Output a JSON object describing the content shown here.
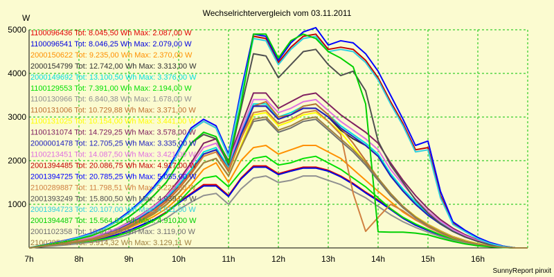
{
  "chart_data": {
    "type": "line",
    "title": "Wechselrichtervergleich vom 03.11.2011",
    "ylabel": "W",
    "credit": "SunnyReport pinxit",
    "grid": true,
    "legend_placement": "top-left",
    "x_range": [
      7.0,
      17.0
    ],
    "y_range": [
      0,
      5000
    ],
    "xticks": [
      {
        "value": 7,
        "label": "7h"
      },
      {
        "value": 8,
        "label": "8h"
      },
      {
        "value": 9,
        "label": "9h"
      },
      {
        "value": 10,
        "label": "10h"
      },
      {
        "value": 11,
        "label": "11h"
      },
      {
        "value": 12,
        "label": "12h"
      },
      {
        "value": 13,
        "label": "13h"
      },
      {
        "value": 14,
        "label": "14h"
      },
      {
        "value": 15,
        "label": "15h"
      },
      {
        "value": 16,
        "label": "16h"
      }
    ],
    "yticks": [
      {
        "value": 1000,
        "label": "1000"
      },
      {
        "value": 2000,
        "label": "2000"
      },
      {
        "value": 3000,
        "label": "3000"
      },
      {
        "value": 4000,
        "label": "4000"
      },
      {
        "value": 5000,
        "label": "5000"
      }
    ],
    "x": [
      7.0,
      7.25,
      7.5,
      7.75,
      8.0,
      8.25,
      8.5,
      8.75,
      9.0,
      9.25,
      9.5,
      9.75,
      10.0,
      10.25,
      10.5,
      10.75,
      11.0,
      11.25,
      11.5,
      11.75,
      12.0,
      12.25,
      12.5,
      12.75,
      13.0,
      13.25,
      13.5,
      13.75,
      14.0,
      14.25,
      14.5,
      14.75,
      15.0,
      15.25,
      15.5,
      15.75,
      16.0,
      16.25,
      16.5,
      16.75,
      17.0
    ],
    "series": [
      {
        "name": "1100096436 Tot: 8.045,50 Wh Max: 2.087,00 W",
        "color": "#e00000",
        "values": [
          0,
          30,
          60,
          90,
          120,
          160,
          220,
          300,
          400,
          520,
          650,
          820,
          1050,
          1250,
          1450,
          1450,
          1200,
          1600,
          1880,
          1880,
          1700,
          1780,
          1850,
          1850,
          1780,
          1650,
          1480,
          1280,
          1100,
          900,
          700,
          540,
          420,
          300,
          200,
          130,
          80,
          40,
          20,
          0,
          0
        ]
      },
      {
        "name": "1100096541 Tot: 8.046,25 Wh Max: 2.079,00 W",
        "color": "#0000e0",
        "values": [
          0,
          30,
          60,
          90,
          120,
          160,
          220,
          300,
          400,
          520,
          650,
          800,
          1030,
          1230,
          1420,
          1420,
          1180,
          1580,
          1850,
          1850,
          1680,
          1760,
          1830,
          1830,
          1760,
          1630,
          1460,
          1260,
          1080,
          880,
          680,
          520,
          400,
          290,
          190,
          120,
          70,
          40,
          15,
          0,
          0
        ]
      },
      {
        "name": "2000150622 Tot: 9.235,00 Wh Max: 2.370,00 W",
        "color": "#ff9000",
        "values": [
          0,
          35,
          70,
          100,
          140,
          180,
          250,
          340,
          450,
          580,
          720,
          900,
          1150,
          1450,
          1800,
          1950,
          1500,
          2000,
          2300,
          2350,
          2150,
          2250,
          2350,
          2350,
          2200,
          2050,
          1800,
          1550,
          1300,
          1060,
          820,
          640,
          500,
          360,
          240,
          150,
          90,
          40,
          20,
          0,
          0
        ]
      },
      {
        "name": "2000154799 Tot: 12.742,00 Wh Max: 3.313,00 W",
        "color": "#303030",
        "values": [
          0,
          40,
          80,
          120,
          170,
          220,
          300,
          400,
          540,
          700,
          880,
          1100,
          1400,
          1750,
          2150,
          2250,
          1800,
          2600,
          3250,
          3250,
          2950,
          3050,
          3200,
          3200,
          3000,
          2700,
          2500,
          2350,
          2100,
          1650,
          1300,
          1000,
          750,
          550,
          380,
          250,
          150,
          80,
          30,
          0,
          0
        ]
      },
      {
        "name": "2000149692 Tot: 13.100,50 Wh Max: 3.376,00 W",
        "color": "#00e0e0",
        "values": [
          0,
          40,
          80,
          120,
          170,
          230,
          310,
          420,
          560,
          720,
          900,
          1150,
          1450,
          1800,
          2200,
          2300,
          1850,
          2650,
          3300,
          3300,
          3000,
          3100,
          3250,
          3300,
          3050,
          2800,
          2600,
          2400,
          2150,
          1700,
          1350,
          1050,
          780,
          570,
          390,
          260,
          160,
          80,
          30,
          0,
          0
        ]
      },
      {
        "name": "1100129553 Tot: 7.391,00 Wh Max: 2.194,00 W",
        "color": "#00e000",
        "values": [
          0,
          30,
          50,
          80,
          110,
          150,
          200,
          270,
          360,
          480,
          620,
          800,
          1050,
          1350,
          1600,
          1650,
          1400,
          1750,
          2050,
          2100,
          1900,
          1950,
          2050,
          2100,
          1950,
          1800,
          1600,
          1400,
          1150,
          900,
          700,
          550,
          420,
          300,
          200,
          130,
          80,
          40,
          15,
          0,
          0
        ]
      },
      {
        "name": "1100130966 Tot: 6.840,38 Wh Max: 1.678,00 W",
        "color": "#909090",
        "values": [
          0,
          25,
          45,
          70,
          100,
          130,
          170,
          230,
          310,
          420,
          540,
          680,
          880,
          1050,
          1200,
          1250,
          1000,
          1350,
          1600,
          1650,
          1500,
          1550,
          1650,
          1650,
          1550,
          1450,
          1300,
          1150,
          950,
          760,
          600,
          470,
          360,
          260,
          170,
          110,
          70,
          30,
          15,
          0,
          0
        ]
      },
      {
        "name": "1100131006 Tot: 10.729,88 Wh Max: 3.371,00 W",
        "color": "#c07030",
        "values": [
          0,
          40,
          70,
          110,
          150,
          200,
          280,
          380,
          500,
          650,
          820,
          1050,
          1350,
          1700,
          2100,
          2200,
          1750,
          2500,
          3250,
          3350,
          3000,
          3050,
          3250,
          3300,
          3050,
          2750,
          2400,
          2000,
          1600,
          1250,
          950,
          720,
          540,
          390,
          260,
          170,
          100,
          50,
          20,
          0,
          0
        ]
      },
      {
        "name": "1100131025 Tot: 10.154,00 Wh Max: 3.441,00 W",
        "color": "#ffff00",
        "values": [
          0,
          35,
          70,
          100,
          140,
          190,
          260,
          350,
          470,
          610,
          770,
          980,
          1250,
          1600,
          1950,
          2050,
          1650,
          2350,
          3050,
          3100,
          2800,
          2900,
          3050,
          3100,
          2900,
          2650,
          2300,
          1950,
          1600,
          1250,
          950,
          720,
          530,
          380,
          250,
          160,
          100,
          50,
          20,
          0,
          0
        ]
      },
      {
        "name": "1100131074 Tot: 14.729,25 Wh Max: 3.578,00 W",
        "color": "#802060",
        "values": [
          0,
          45,
          90,
          130,
          180,
          240,
          330,
          440,
          590,
          760,
          960,
          1200,
          1550,
          1950,
          2400,
          2500,
          2000,
          2800,
          3550,
          3550,
          3200,
          3350,
          3500,
          3550,
          3300,
          3050,
          2850,
          2650,
          2400,
          1950,
          1550,
          1200,
          900,
          650,
          450,
          300,
          180,
          90,
          35,
          0,
          0
        ]
      },
      {
        "name": "2000001478 Tot: 12.705,25 Wh Max: 3.335,00 W",
        "color": "#2020c0",
        "values": [
          0,
          40,
          80,
          120,
          170,
          220,
          300,
          400,
          540,
          700,
          880,
          1100,
          1400,
          1750,
          2150,
          2250,
          1800,
          2600,
          3250,
          3250,
          2950,
          3050,
          3200,
          3200,
          3000,
          2750,
          2550,
          2350,
          2100,
          1650,
          1300,
          1000,
          750,
          550,
          380,
          250,
          150,
          80,
          30,
          0,
          0
        ]
      },
      {
        "name": "1100213451 Tot: 14.087,50 Wh Max: 3.421,00 W",
        "color": "#e070e0",
        "values": [
          0,
          45,
          90,
          130,
          180,
          240,
          330,
          440,
          580,
          750,
          950,
          1180,
          1500,
          1900,
          2300,
          2400,
          1950,
          2700,
          3400,
          3400,
          3100,
          3200,
          3350,
          3400,
          3150,
          2900,
          2700,
          2500,
          2250,
          1800,
          1450,
          1120,
          840,
          610,
          420,
          280,
          170,
          85,
          35,
          0,
          0
        ]
      },
      {
        "name": "2001394485 Tot: 20.086,75 Wh Max: 4.917,00 W",
        "color": "#c00000",
        "values": [
          0,
          55,
          110,
          170,
          240,
          320,
          440,
          600,
          800,
          1050,
          1350,
          1700,
          2200,
          2700,
          2900,
          2750,
          2100,
          3550,
          4850,
          4800,
          4250,
          4600,
          4850,
          4900,
          4550,
          4600,
          4550,
          4300,
          3900,
          3350,
          2850,
          2250,
          2300,
          1200,
          560,
          380,
          220,
          110,
          40,
          0,
          0
        ]
      },
      {
        "name": "2001394725 Tot: 20.785,25 Wh Max: 5.055,00 W",
        "color": "#0000ff",
        "values": [
          0,
          60,
          120,
          180,
          250,
          340,
          460,
          620,
          830,
          1080,
          1400,
          1750,
          2250,
          2750,
          2950,
          2800,
          2150,
          3600,
          4900,
          4850,
          4300,
          4700,
          4950,
          5050,
          4650,
          4750,
          4700,
          4450,
          4050,
          3500,
          2950,
          2350,
          2450,
          1300,
          600,
          400,
          240,
          120,
          45,
          0,
          0
        ]
      },
      {
        "name": "2100289887 Tot: 11.798,51 Wh Max: 3.220,00 W",
        "color": "#d08040",
        "values": [
          0,
          40,
          80,
          120,
          160,
          210,
          290,
          390,
          520,
          680,
          860,
          1080,
          1380,
          1750,
          2100,
          2200,
          1800,
          2500,
          3100,
          3150,
          2850,
          2950,
          3100,
          3150,
          2900,
          2600,
          1250,
          380,
          700,
          1000,
          850,
          650,
          480,
          340,
          220,
          140,
          85,
          40,
          15,
          0,
          0
        ]
      },
      {
        "name": "2001393249 Tot: 15.800,50 Wh Max: 4.939,00 W",
        "color": "#505050",
        "values": [
          0,
          50,
          100,
          150,
          210,
          280,
          390,
          530,
          710,
          930,
          1200,
          1500,
          1950,
          2400,
          2600,
          2500,
          1900,
          3200,
          4450,
          4400,
          3900,
          4200,
          4500,
          4550,
          4200,
          3950,
          4050,
          3600,
          2450,
          1900,
          1500,
          1100,
          800,
          560,
          380,
          250,
          150,
          75,
          30,
          0,
          0
        ]
      },
      {
        "name": "2001394723 Tot: 20.107,00 Wh Max: 4.911,00 W",
        "color": "#30d0e0",
        "values": [
          0,
          55,
          110,
          170,
          240,
          320,
          440,
          600,
          800,
          1050,
          1350,
          1700,
          2200,
          2700,
          2900,
          2750,
          2100,
          3500,
          4800,
          4750,
          4200,
          4550,
          4800,
          4850,
          4500,
          4550,
          4500,
          4250,
          3850,
          3300,
          2800,
          2200,
          2250,
          1150,
          540,
          370,
          210,
          100,
          35,
          0,
          0
        ]
      },
      {
        "name": "2001394487 Tot: 15.564,63 Wh Max: 4.910,00 W",
        "color": "#00d000",
        "values": [
          0,
          50,
          100,
          150,
          210,
          280,
          390,
          530,
          710,
          930,
          1200,
          1500,
          1950,
          2400,
          2650,
          2550,
          1950,
          3300,
          4900,
          4900,
          4350,
          4750,
          4900,
          4800,
          4500,
          4350,
          4150,
          3300,
          370,
          360,
          360,
          340,
          300,
          220,
          150,
          90,
          50,
          25,
          10,
          0,
          0
        ]
      },
      {
        "name": "2001102358 Tot: 10.012,75 Wh Max: 3.119,00 W",
        "color": "#707070",
        "values": [
          0,
          35,
          70,
          100,
          140,
          190,
          260,
          350,
          470,
          620,
          780,
          990,
          1260,
          1600,
          1950,
          2050,
          1650,
          2300,
          2900,
          2950,
          2650,
          2750,
          2900,
          2950,
          2700,
          2450,
          2200,
          1900,
          1550,
          1200,
          920,
          690,
          510,
          360,
          240,
          150,
          90,
          45,
          18,
          0,
          0
        ]
      },
      {
        "name": "2100285627 Tot: 9.914,32 Wh Max: 3.129,11 W",
        "color": "#a08040",
        "values": [
          0,
          35,
          70,
          100,
          140,
          190,
          260,
          350,
          470,
          620,
          780,
          990,
          1260,
          1600,
          1950,
          2050,
          1650,
          2300,
          2950,
          3000,
          2700,
          2800,
          2950,
          3000,
          2750,
          2500,
          2250,
          1950,
          1600,
          1250,
          950,
          710,
          520,
          370,
          240,
          150,
          90,
          45,
          18,
          0,
          0
        ]
      }
    ]
  }
}
